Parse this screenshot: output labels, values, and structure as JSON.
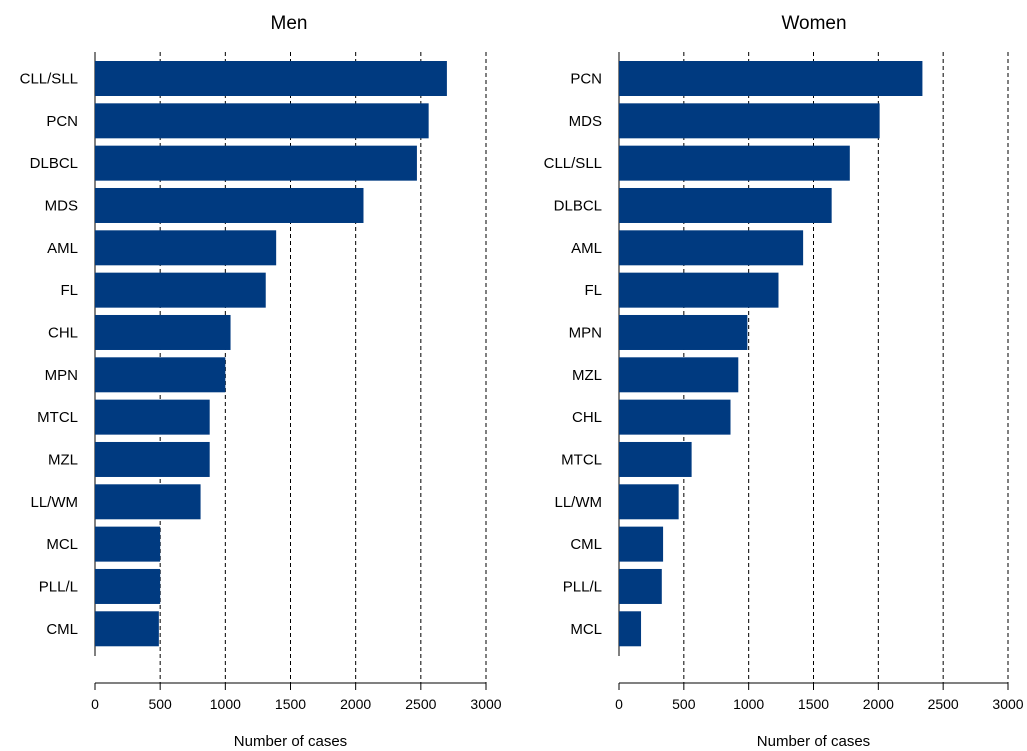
{
  "chart_data": [
    {
      "type": "bar",
      "orientation": "horizontal",
      "title": "Men",
      "xlabel": "Number of cases",
      "ylabel": "",
      "xlim": [
        0,
        3000
      ],
      "xticks": [
        0,
        500,
        1000,
        1500,
        2000,
        2500,
        3000
      ],
      "grid": "vertical dashed at 500, 1000, 1500, 2000, 2500, 3000",
      "bar_color": "#003A80",
      "categories": [
        "CLL/SLL",
        "PCN",
        "DLBCL",
        "MDS",
        "AML",
        "FL",
        "CHL",
        "MPN",
        "MTCL",
        "MZL",
        "LL/WM",
        "MCL",
        "PLL/L",
        "CML"
      ],
      "values": [
        2700,
        2560,
        2470,
        2060,
        1390,
        1310,
        1040,
        1000,
        880,
        880,
        810,
        500,
        500,
        490
      ]
    },
    {
      "type": "bar",
      "orientation": "horizontal",
      "title": "Women",
      "xlabel": "Number of cases",
      "ylabel": "",
      "xlim": [
        0,
        3000
      ],
      "xticks": [
        0,
        500,
        1000,
        1500,
        2000,
        2500,
        3000
      ],
      "grid": "vertical dashed at 500, 1000, 1500, 2000, 2500, 3000",
      "bar_color": "#003A80",
      "categories": [
        "PCN",
        "MDS",
        "CLL/SLL",
        "DLBCL",
        "AML",
        "FL",
        "MPN",
        "MZL",
        "CHL",
        "MTCL",
        "LL/WM",
        "CML",
        "PLL/L",
        "MCL"
      ],
      "values": [
        2340,
        2010,
        1780,
        1640,
        1420,
        1230,
        990,
        920,
        860,
        560,
        460,
        340,
        330,
        170
      ]
    }
  ]
}
